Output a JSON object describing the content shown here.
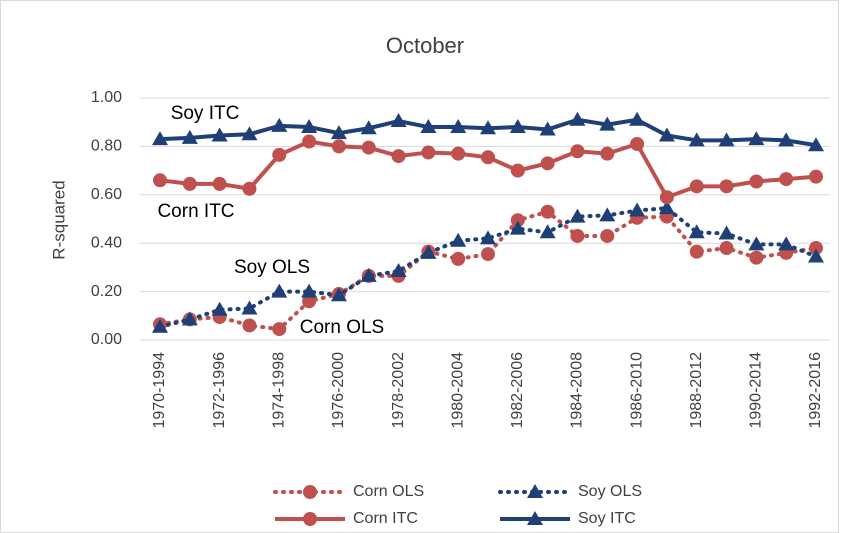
{
  "chart_data": {
    "type": "line",
    "title": "October",
    "y_label": "R-squared",
    "categories": [
      "1970-1994",
      null,
      "1972-1996",
      null,
      "1974-1998",
      null,
      "1976-2000",
      null,
      "1978-2002",
      null,
      "1980-2004",
      null,
      "1982-2006",
      null,
      "1984-2008",
      null,
      "1986-2010",
      null,
      "1988-2012",
      null,
      "1990-2014",
      null,
      "1992-2016"
    ],
    "ylim": [
      0,
      1
    ],
    "yticks": [
      {
        "value": 0,
        "label": "0.00"
      },
      {
        "value": 0.2,
        "label": "0.20"
      },
      {
        "value": 0.4,
        "label": "0.40"
      },
      {
        "value": 0.6,
        "label": "0.60"
      },
      {
        "value": 0.8,
        "label": "0.80"
      },
      {
        "value": 1,
        "label": "1.00"
      }
    ],
    "grid": true,
    "legend": "bottom",
    "series": [
      {
        "name": "Corn OLS",
        "color": "#c0504d",
        "line_style": "dotted",
        "marker": "circle",
        "values": [
          0.065,
          0.085,
          0.095,
          0.06,
          0.045,
          0.16,
          0.19,
          0.265,
          0.265,
          0.365,
          0.335,
          0.355,
          0.495,
          0.53,
          0.43,
          0.43,
          0.505,
          0.51,
          0.365,
          0.38,
          0.34,
          0.36,
          0.38
        ]
      },
      {
        "name": "Soy OLS",
        "color": "#1f3f77",
        "line_style": "dotted",
        "marker": "triangle",
        "values": [
          0.055,
          0.085,
          0.125,
          0.13,
          0.2,
          0.2,
          0.185,
          0.265,
          0.285,
          0.36,
          0.41,
          0.42,
          0.46,
          0.445,
          0.51,
          0.515,
          0.535,
          0.545,
          0.445,
          0.44,
          0.395,
          0.395,
          0.345
        ]
      },
      {
        "name": "Corn ITC",
        "color": "#c0504d",
        "line_style": "solid",
        "marker": "circle",
        "values": [
          0.66,
          0.645,
          0.645,
          0.625,
          0.765,
          0.82,
          0.8,
          0.795,
          0.76,
          0.775,
          0.77,
          0.755,
          0.7,
          0.73,
          0.78,
          0.77,
          0.81,
          0.59,
          0.635,
          0.635,
          0.655,
          0.665,
          0.675
        ]
      },
      {
        "name": "Soy ITC",
        "color": "#1f3f77",
        "line_style": "solid",
        "marker": "triangle",
        "values": [
          0.83,
          0.835,
          0.845,
          0.85,
          0.885,
          0.88,
          0.855,
          0.875,
          0.905,
          0.88,
          0.88,
          0.875,
          0.88,
          0.87,
          0.91,
          0.89,
          0.91,
          0.845,
          0.825,
          0.825,
          0.83,
          0.825,
          0.805
        ]
      }
    ],
    "annotations": [
      "Soy ITC",
      "Corn ITC",
      "Soy OLS",
      "Corn OLS"
    ]
  }
}
